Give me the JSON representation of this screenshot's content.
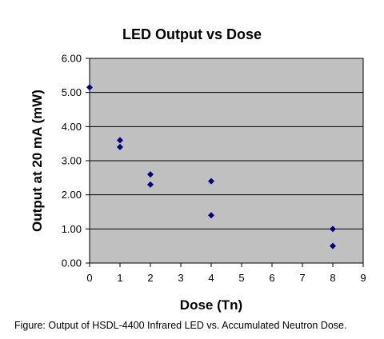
{
  "chart_data": {
    "type": "scatter",
    "title": "LED Output vs Dose",
    "xlabel": "Dose (Tn)",
    "ylabel": "Output at 20 mA (mW)",
    "xlim": [
      0,
      9
    ],
    "ylim": [
      0,
      6
    ],
    "x_ticks": [
      "0",
      "1",
      "2",
      "3",
      "4",
      "5",
      "6",
      "7",
      "8",
      "9"
    ],
    "y_ticks": [
      "0.00",
      "1.00",
      "2.00",
      "3.00",
      "4.00",
      "5.00",
      "6.00"
    ],
    "grid": "horizontal",
    "legend": "none",
    "points": [
      {
        "x": 0,
        "y": 5.15
      },
      {
        "x": 1,
        "y": 3.6
      },
      {
        "x": 1,
        "y": 3.4
      },
      {
        "x": 2,
        "y": 2.6
      },
      {
        "x": 2,
        "y": 2.3
      },
      {
        "x": 4,
        "y": 2.4
      },
      {
        "x": 4,
        "y": 1.4
      },
      {
        "x": 8,
        "y": 1.0
      },
      {
        "x": 8,
        "y": 0.5
      }
    ],
    "colors": {
      "plot_background": "#c0c0c0",
      "marker": "#000080",
      "grid": "#000000"
    }
  },
  "caption": "Figure: Output of HSDL-4400 Infrared LED vs. Accumulated Neutron Dose."
}
